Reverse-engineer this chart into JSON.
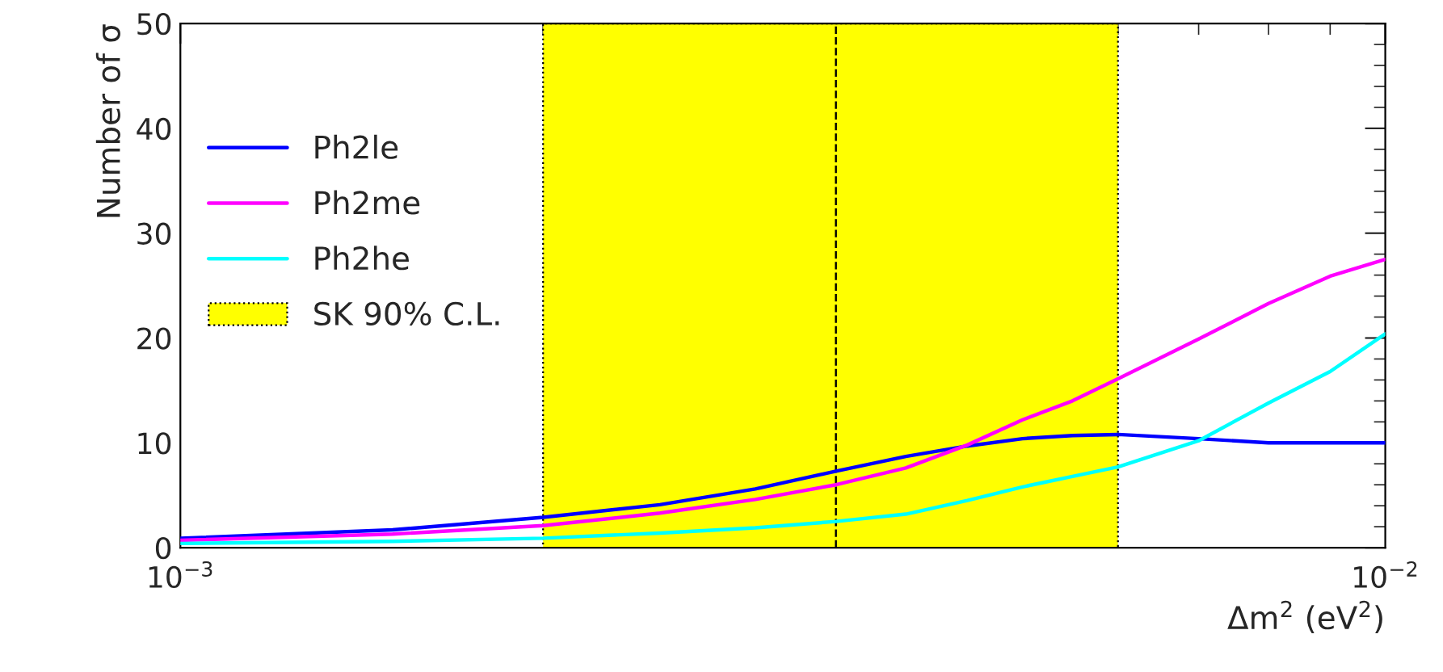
{
  "chart_data": {
    "type": "line",
    "xlabel": "Δm$^{2}$ (eV$^{2}$)",
    "ylabel": "Number of σ",
    "log": "x",
    "x": [
      0.001,
      0.0015,
      0.002,
      0.0025,
      0.003,
      0.0035,
      0.004,
      0.0045,
      0.005,
      0.0055,
      0.006,
      0.007,
      0.008,
      0.009,
      0.01
    ],
    "series": [
      {
        "name": "Ph2le",
        "color": "#0000ff",
        "values": [
          0.9,
          1.7,
          2.9,
          4.1,
          5.6,
          7.3,
          8.7,
          9.7,
          10.4,
          10.7,
          10.8,
          10.4,
          10.0,
          10.0,
          10.0
        ]
      },
      {
        "name": "Ph2me",
        "color": "#ff00ff",
        "values": [
          0.7,
          1.3,
          2.1,
          3.3,
          4.6,
          6.0,
          7.6,
          9.8,
          12.2,
          14.0,
          16.1,
          19.9,
          23.3,
          25.9,
          27.5
        ]
      },
      {
        "name": "Ph2he",
        "color": "#00ffff",
        "values": [
          0.4,
          0.6,
          0.9,
          1.4,
          1.9,
          2.5,
          3.2,
          4.5,
          5.8,
          6.8,
          7.7,
          10.2,
          13.8,
          16.8,
          20.4
        ]
      }
    ],
    "bands": [
      {
        "axis": "x",
        "from": 0.002,
        "to": 0.006,
        "label": "SK 90% C.L.",
        "color": "#ffff00"
      }
    ],
    "ref_lines": [
      {
        "axis": "x",
        "value": 0.0035,
        "line_style": "dashed"
      }
    ],
    "xlim": [
      0.001,
      0.01
    ],
    "xticks": [
      {
        "value": 0.001,
        "label": "10$^{−3}$"
      },
      {
        "value": 0.01,
        "label": "10$^{−2}$"
      }
    ],
    "ylim": [
      0,
      50
    ],
    "yticks": [
      0,
      10,
      20,
      30,
      40,
      50
    ],
    "legend": "left",
    "grid": false,
    "line_style": "solid",
    "marker": "none"
  }
}
